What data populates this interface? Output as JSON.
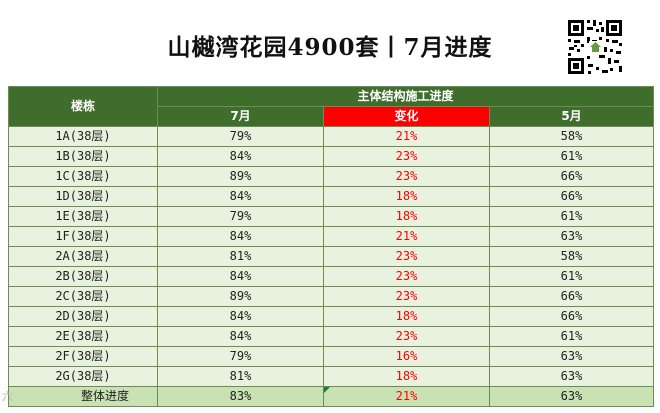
{
  "title": "山樾湾花园4900套丨7月进度",
  "table": {
    "col_building": "楼栋",
    "group_header": "主体结构施工进度",
    "col_july": "7月",
    "col_change": "变化",
    "col_may": "5月",
    "rows": [
      {
        "name": "1A(38层)",
        "july": "79%",
        "change": "21%",
        "may": "58%"
      },
      {
        "name": "1B(38层)",
        "july": "84%",
        "change": "23%",
        "may": "61%"
      },
      {
        "name": "1C(38层)",
        "july": "89%",
        "change": "23%",
        "may": "66%"
      },
      {
        "name": "1D(38层)",
        "july": "84%",
        "change": "18%",
        "may": "66%"
      },
      {
        "name": "1E(38层)",
        "july": "79%",
        "change": "18%",
        "may": "61%"
      },
      {
        "name": "1F(38层)",
        "july": "84%",
        "change": "21%",
        "may": "63%"
      },
      {
        "name": "2A(38层)",
        "july": "81%",
        "change": "23%",
        "may": "58%"
      },
      {
        "name": "2B(38层)",
        "july": "84%",
        "change": "23%",
        "may": "61%"
      },
      {
        "name": "2C(38层)",
        "july": "89%",
        "change": "23%",
        "may": "66%"
      },
      {
        "name": "2D(38层)",
        "july": "84%",
        "change": "18%",
        "may": "66%"
      },
      {
        "name": "2E(38层)",
        "july": "84%",
        "change": "23%",
        "may": "61%"
      },
      {
        "name": "2F(38层)",
        "july": "79%",
        "change": "16%",
        "may": "63%"
      },
      {
        "name": "2G(38层)",
        "july": "81%",
        "change": "18%",
        "may": "63%"
      }
    ],
    "total": {
      "name": "整体进度",
      "july": "83%",
      "change": "21%",
      "may": "63%"
    }
  },
  "watermark": "六",
  "colors": {
    "header_green": "#3e6d2c",
    "change_header_red": "#ff0000",
    "cell_green": "#e8f2de",
    "total_green": "#c9e2b3",
    "change_text": "#ff0000"
  },
  "icons": {
    "qr": "qr-code-icon"
  }
}
